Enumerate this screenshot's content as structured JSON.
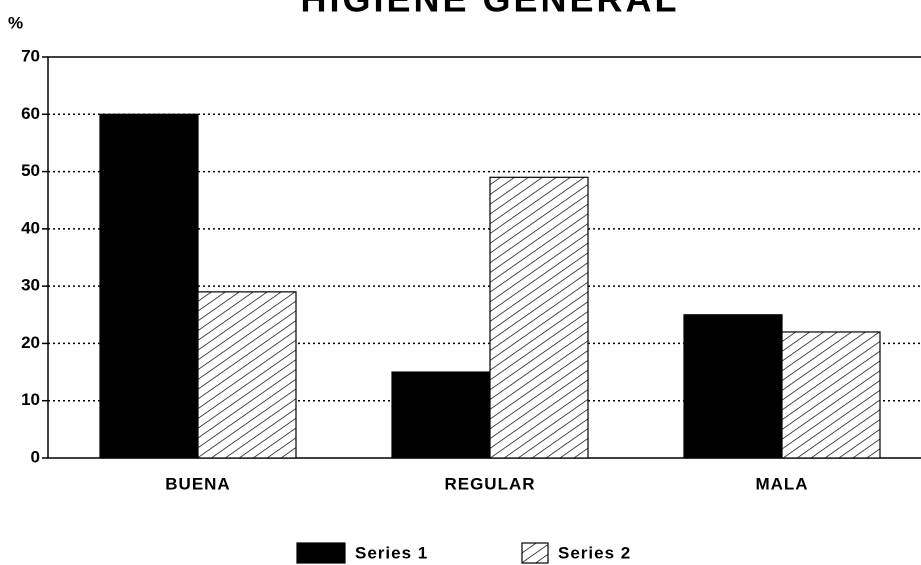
{
  "chart_data": {
    "type": "bar",
    "title": "HIGIENE GENERAL",
    "y_label": "%",
    "categories": [
      "BUENA",
      "REGULAR",
      "MALA"
    ],
    "series": [
      {
        "name": "Series 1",
        "color": "#000000",
        "values": [
          60,
          15,
          25
        ]
      },
      {
        "name": "Series 2",
        "color": "#ffffff",
        "hatch": true,
        "values": [
          29,
          49,
          22
        ]
      }
    ],
    "ylim": [
      0,
      70
    ],
    "yticks": [
      0,
      10,
      20,
      30,
      40,
      50,
      60,
      70
    ],
    "grid": true,
    "legend": "bottom"
  }
}
